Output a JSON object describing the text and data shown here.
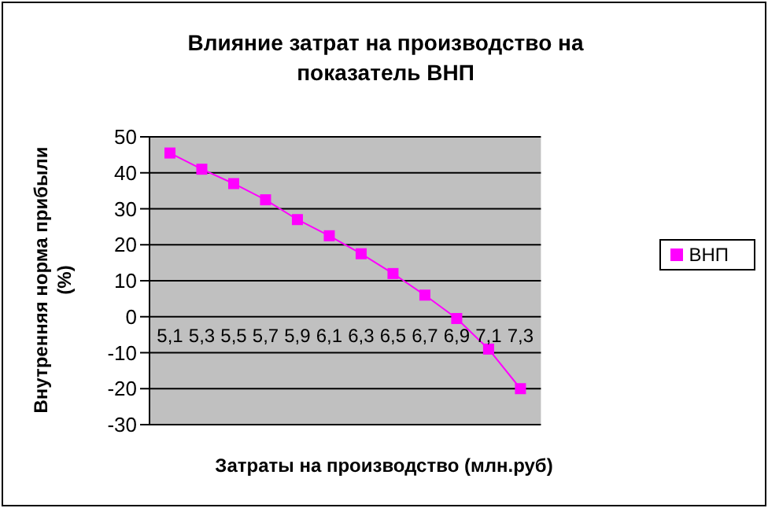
{
  "chart_data": {
    "type": "line",
    "title": "Влияние затрат на производство на показатель ВНП",
    "xlabel": "Затраты на производство (млн.руб)",
    "ylabel": "Внутренняя норма прибыли (%)",
    "categories": [
      "5,1",
      "5,3",
      "5,5",
      "5,7",
      "5,9",
      "6,1",
      "6,3",
      "6,5",
      "6,7",
      "6,9",
      "7,1",
      "7,3"
    ],
    "series": [
      {
        "name": "ВНП",
        "color": "#ff00ff",
        "values": [
          45.5,
          41,
          37,
          32.5,
          27,
          22.5,
          17.5,
          12,
          6,
          -0.5,
          -9,
          -20
        ]
      }
    ],
    "ylim": [
      -30,
      50
    ],
    "yticks": [
      -30,
      -20,
      -10,
      0,
      10,
      20,
      30,
      40,
      50
    ],
    "grid": "y",
    "legend": "right",
    "marker": "square",
    "line_style": "solid"
  }
}
